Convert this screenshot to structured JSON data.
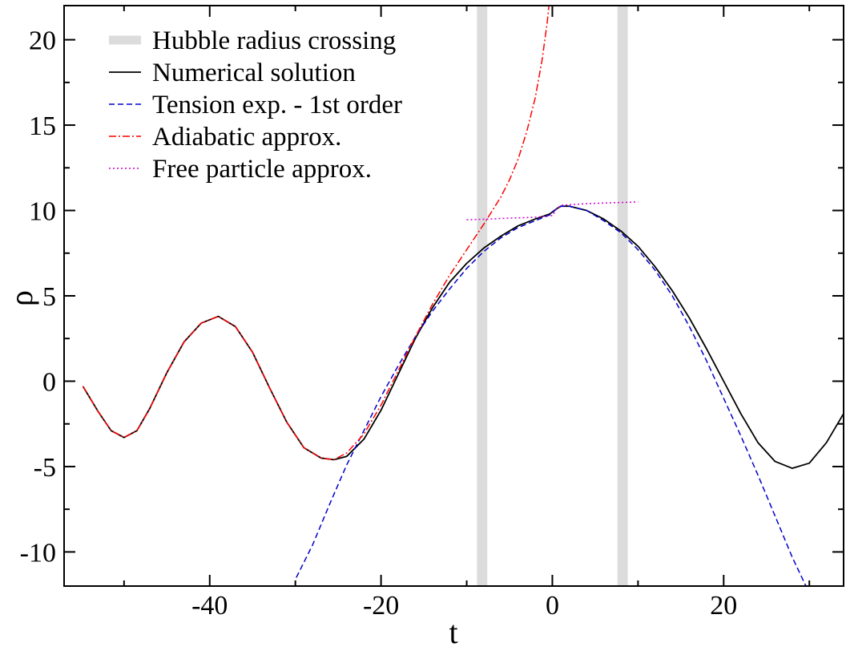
{
  "chart_data": {
    "type": "line",
    "title": "",
    "xlabel": "t",
    "ylabel": "ρ",
    "xlim": [
      -57,
      34
    ],
    "ylim": [
      -12,
      22
    ],
    "x_ticks": [
      -40,
      -20,
      0,
      20
    ],
    "y_ticks": [
      -10,
      -5,
      0,
      5,
      10,
      15,
      20
    ],
    "x_tick_labels": [
      "-40",
      "-20",
      "0",
      "20"
    ],
    "y_tick_labels": [
      "-10",
      "-5",
      "0",
      "5",
      "10",
      "15",
      "20"
    ],
    "grid": false,
    "legend_position": "top-left",
    "hubble_bands": [
      {
        "x_min": -8.8,
        "x_max": -7.6
      },
      {
        "x_min": 7.6,
        "x_max": 8.8
      }
    ],
    "series": [
      {
        "name": "Hubble radius crossing",
        "style": "band",
        "color": "#dcdcdc",
        "points": []
      },
      {
        "name": "Numerical solution",
        "style": "solid",
        "color": "#000000",
        "points": [
          [
            -54.8,
            -0.3
          ],
          [
            -53,
            -1.8
          ],
          [
            -51.5,
            -2.9
          ],
          [
            -50,
            -3.3
          ],
          [
            -48.5,
            -2.9
          ],
          [
            -47,
            -1.6
          ],
          [
            -45,
            0.5
          ],
          [
            -43,
            2.3
          ],
          [
            -41,
            3.4
          ],
          [
            -39,
            3.8
          ],
          [
            -37,
            3.2
          ],
          [
            -35,
            1.7
          ],
          [
            -33,
            -0.4
          ],
          [
            -31,
            -2.4
          ],
          [
            -29,
            -3.9
          ],
          [
            -27,
            -4.5
          ],
          [
            -25.5,
            -4.6
          ],
          [
            -24,
            -4.4
          ],
          [
            -22,
            -3.4
          ],
          [
            -20,
            -1.7
          ],
          [
            -18,
            0.4
          ],
          [
            -16,
            2.5
          ],
          [
            -14,
            4.3
          ],
          [
            -12,
            5.8
          ],
          [
            -10,
            6.9
          ],
          [
            -8,
            7.8
          ],
          [
            -6,
            8.5
          ],
          [
            -4,
            9.1
          ],
          [
            -2,
            9.5
          ],
          [
            -0.3,
            9.8
          ],
          [
            0.5,
            10.1
          ],
          [
            1,
            10.25
          ],
          [
            2,
            10.25
          ],
          [
            4,
            10.0
          ],
          [
            6,
            9.5
          ],
          [
            8,
            8.8
          ],
          [
            10,
            7.9
          ],
          [
            12,
            6.7
          ],
          [
            14,
            5.3
          ],
          [
            16,
            3.7
          ],
          [
            18,
            1.9
          ],
          [
            20,
            0.0
          ],
          [
            22,
            -1.9
          ],
          [
            24,
            -3.6
          ],
          [
            26,
            -4.7
          ],
          [
            28,
            -5.1
          ],
          [
            30,
            -4.8
          ],
          [
            32,
            -3.6
          ],
          [
            34,
            -1.9
          ]
        ]
      },
      {
        "name": "Tension exp. - 1st order",
        "style": "dashed",
        "color": "#0000cc",
        "points": [
          [
            -29.9,
            -11.5
          ],
          [
            -28,
            -9.6
          ],
          [
            -26,
            -7.2
          ],
          [
            -24,
            -4.9
          ],
          [
            -22,
            -2.9
          ],
          [
            -20,
            -0.9
          ],
          [
            -18,
            0.9
          ],
          [
            -16,
            2.6
          ],
          [
            -14,
            4.1
          ],
          [
            -12,
            5.4
          ],
          [
            -10,
            6.6
          ],
          [
            -8,
            7.6
          ],
          [
            -6,
            8.4
          ],
          [
            -4,
            9.0
          ],
          [
            -2,
            9.4
          ],
          [
            -0.3,
            9.75
          ],
          [
            0.5,
            10.1
          ],
          [
            1,
            10.25
          ],
          [
            2,
            10.25
          ],
          [
            4,
            10.0
          ],
          [
            6,
            9.4
          ],
          [
            8,
            8.7
          ],
          [
            10,
            7.7
          ],
          [
            12,
            6.5
          ],
          [
            14,
            5.0
          ],
          [
            16,
            3.2
          ],
          [
            18,
            1.2
          ],
          [
            20,
            -1.0
          ],
          [
            22,
            -3.2
          ],
          [
            24,
            -5.5
          ],
          [
            26,
            -7.9
          ],
          [
            28,
            -10.3
          ],
          [
            29.6,
            -12
          ]
        ]
      },
      {
        "name": "Adiabatic approx.",
        "style": "dashdot",
        "color": "#ff0000",
        "points": [
          [
            -54.8,
            -0.3
          ],
          [
            -53,
            -1.8
          ],
          [
            -51.5,
            -2.9
          ],
          [
            -50,
            -3.3
          ],
          [
            -48.5,
            -2.9
          ],
          [
            -47,
            -1.6
          ],
          [
            -45,
            0.5
          ],
          [
            -43,
            2.3
          ],
          [
            -41,
            3.4
          ],
          [
            -39,
            3.8
          ],
          [
            -37,
            3.2
          ],
          [
            -35,
            1.7
          ],
          [
            -33,
            -0.4
          ],
          [
            -31,
            -2.4
          ],
          [
            -29,
            -3.9
          ],
          [
            -27,
            -4.5
          ],
          [
            -25.5,
            -4.6
          ],
          [
            -24,
            -4.2
          ],
          [
            -22,
            -3.1
          ],
          [
            -20,
            -1.4
          ],
          [
            -18,
            0.6
          ],
          [
            -16,
            2.6
          ],
          [
            -14,
            4.5
          ],
          [
            -12,
            6.2
          ],
          [
            -10,
            7.7
          ],
          [
            -8,
            9.2
          ],
          [
            -6,
            10.8
          ],
          [
            -5,
            11.8
          ],
          [
            -4,
            13.0
          ],
          [
            -3,
            14.6
          ],
          [
            -2,
            16.6
          ],
          [
            -1.2,
            18.8
          ],
          [
            -0.6,
            21.0
          ],
          [
            -0.4,
            22
          ]
        ]
      },
      {
        "name": "Free particle approx.",
        "style": "dotted",
        "color": "#cc00cc",
        "points": [
          [
            -10,
            9.45
          ],
          [
            -5,
            9.55
          ],
          [
            -2,
            9.6
          ],
          [
            0,
            9.7
          ],
          [
            0.5,
            10.1
          ],
          [
            1,
            10.3
          ],
          [
            4,
            10.4
          ],
          [
            7,
            10.45
          ],
          [
            10,
            10.5
          ]
        ]
      }
    ]
  }
}
